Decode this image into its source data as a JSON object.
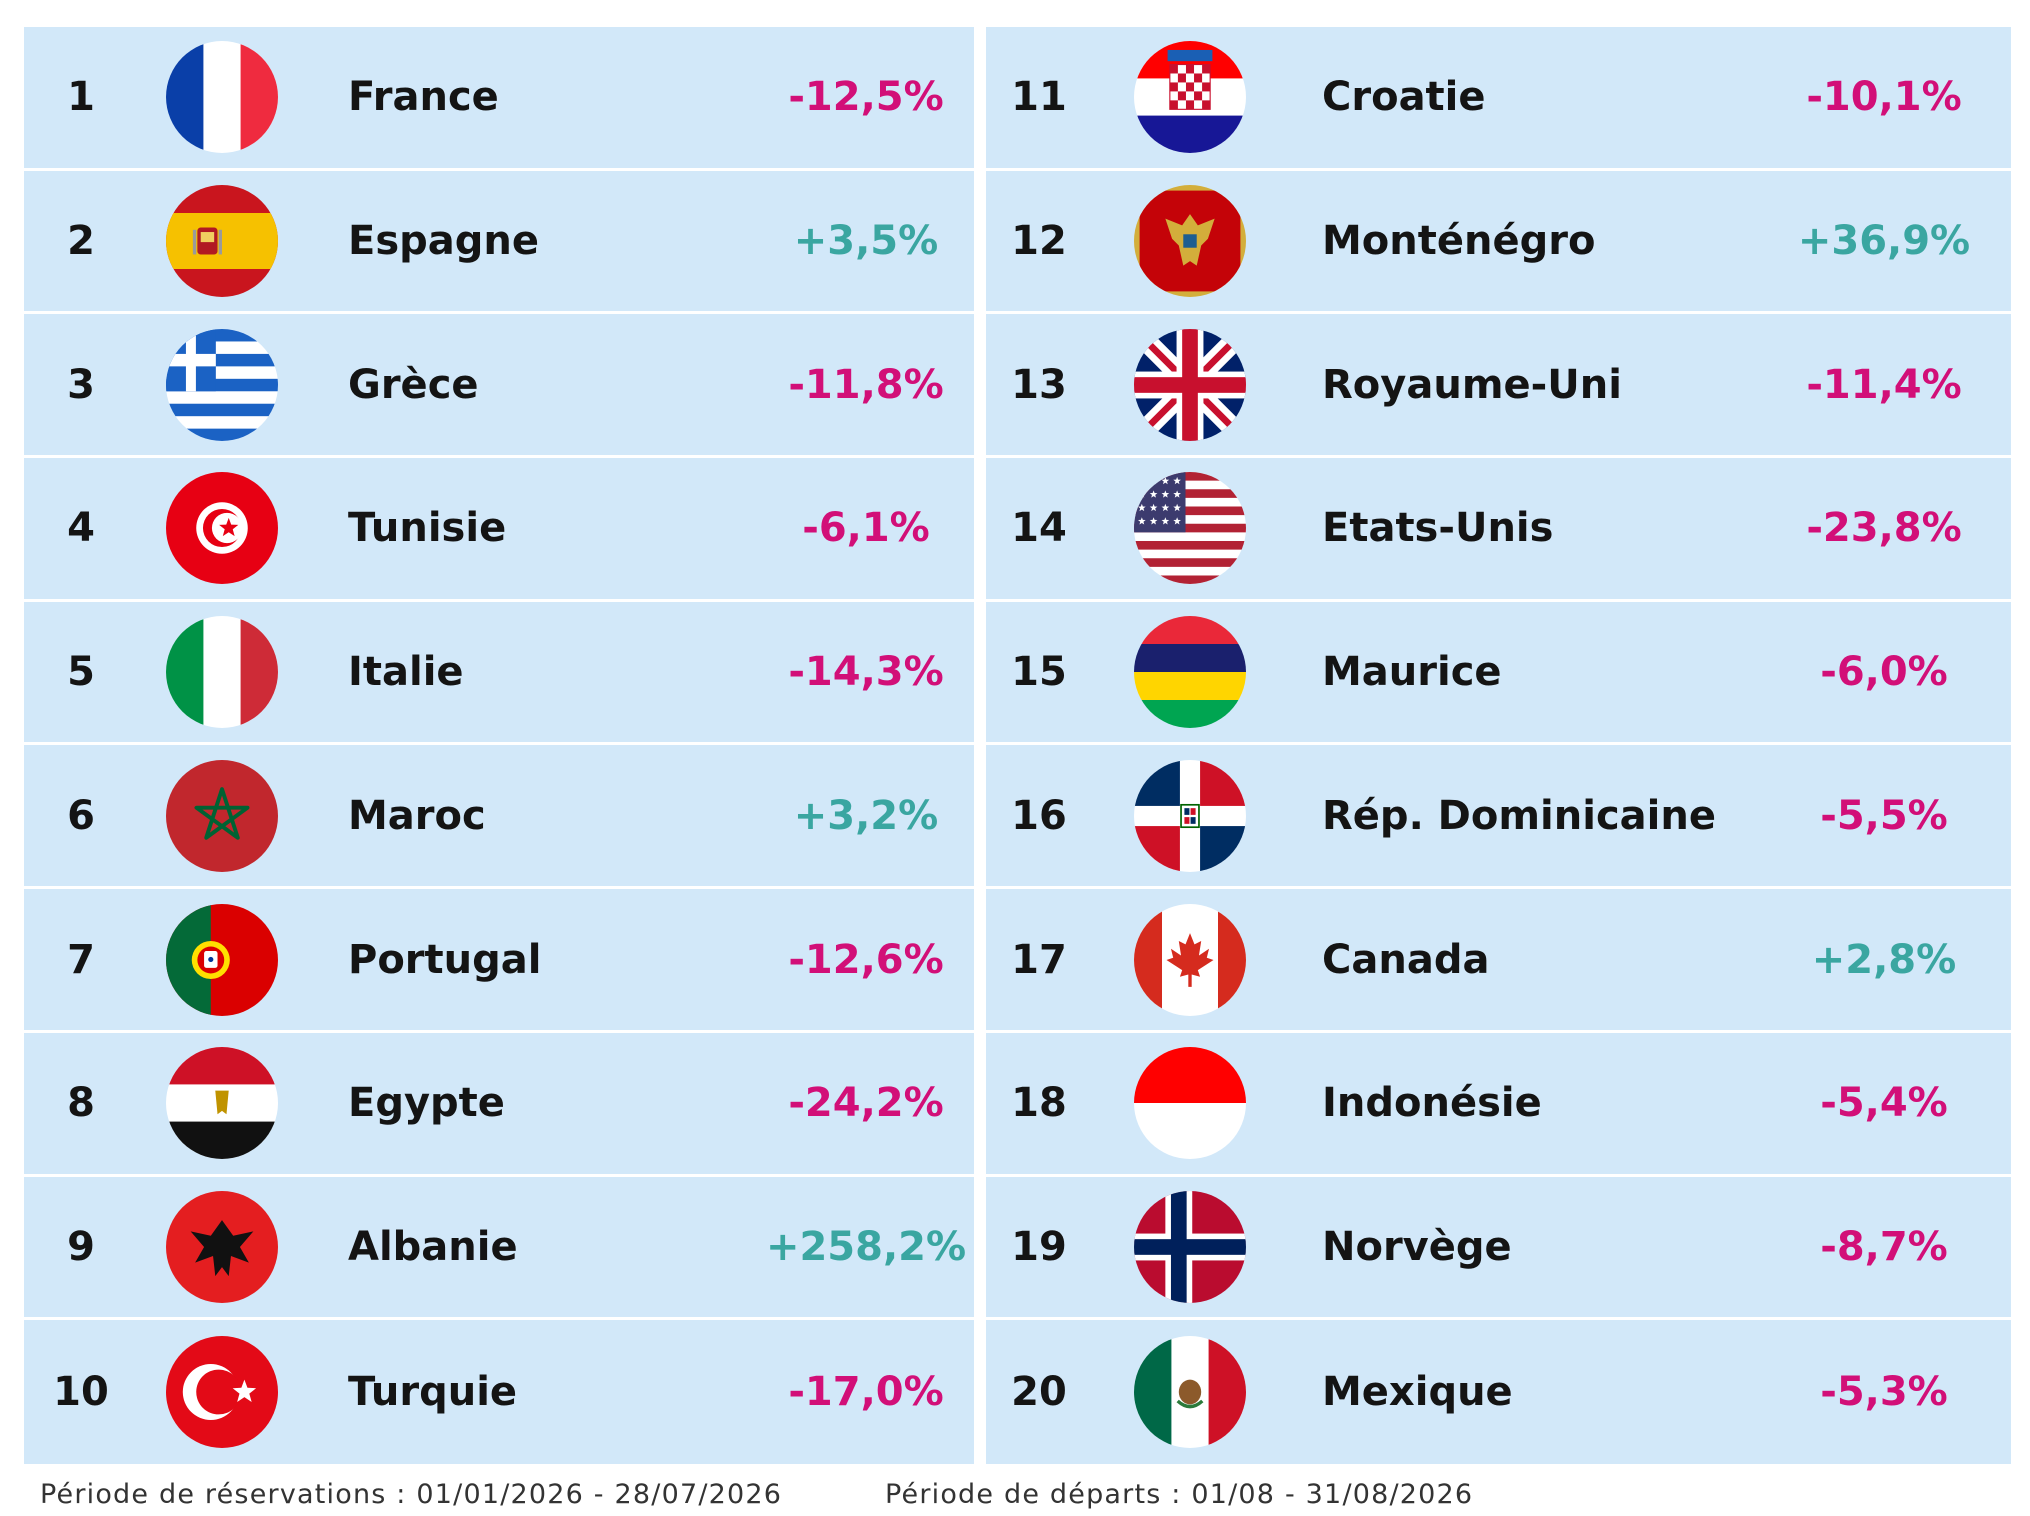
{
  "rows": [
    {
      "rank": "1",
      "country": "France",
      "change": "-12,5%",
      "trend": "down",
      "flag": "france-flag-icon"
    },
    {
      "rank": "2",
      "country": "Espagne",
      "change": "+3,5%",
      "trend": "up",
      "flag": "spain-flag-icon"
    },
    {
      "rank": "3",
      "country": "Grèce",
      "change": "-11,8%",
      "trend": "down",
      "flag": "greece-flag-icon"
    },
    {
      "rank": "4",
      "country": "Tunisie",
      "change": "-6,1%",
      "trend": "down",
      "flag": "tunisia-flag-icon"
    },
    {
      "rank": "5",
      "country": "Italie",
      "change": "-14,3%",
      "trend": "down",
      "flag": "italy-flag-icon"
    },
    {
      "rank": "6",
      "country": "Maroc",
      "change": "+3,2%",
      "trend": "up",
      "flag": "morocco-flag-icon"
    },
    {
      "rank": "7",
      "country": "Portugal",
      "change": "-12,6%",
      "trend": "down",
      "flag": "portugal-flag-icon"
    },
    {
      "rank": "8",
      "country": "Egypte",
      "change": "-24,2%",
      "trend": "down",
      "flag": "egypt-flag-icon"
    },
    {
      "rank": "9",
      "country": "Albanie",
      "change": "+258,2%",
      "trend": "up",
      "flag": "albania-flag-icon"
    },
    {
      "rank": "10",
      "country": "Turquie",
      "change": "-17,0%",
      "trend": "down",
      "flag": "turkey-flag-icon"
    },
    {
      "rank": "11",
      "country": "Croatie",
      "change": "-10,1%",
      "trend": "down",
      "flag": "croatia-flag-icon"
    },
    {
      "rank": "12",
      "country": "Monténégro",
      "change": "+36,9%",
      "trend": "up",
      "flag": "montenegro-flag-icon"
    },
    {
      "rank": "13",
      "country": "Royaume-Uni",
      "change": "-11,4%",
      "trend": "down",
      "flag": "uk-flag-icon"
    },
    {
      "rank": "14",
      "country": "Etats-Unis",
      "change": "-23,8%",
      "trend": "down",
      "flag": "usa-flag-icon"
    },
    {
      "rank": "15",
      "country": "Maurice",
      "change": "-6,0%",
      "trend": "down",
      "flag": "mauritius-flag-icon"
    },
    {
      "rank": "16",
      "country": "Rép. Dominicaine",
      "change": "-5,5%",
      "trend": "down",
      "flag": "dominican-republic-flag-icon"
    },
    {
      "rank": "17",
      "country": "Canada",
      "change": "+2,8%",
      "trend": "up",
      "flag": "canada-flag-icon"
    },
    {
      "rank": "18",
      "country": "Indonésie",
      "change": "-5,4%",
      "trend": "down",
      "flag": "indonesia-flag-icon"
    },
    {
      "rank": "19",
      "country": "Norvège",
      "change": "-8,7%",
      "trend": "down",
      "flag": "norway-flag-icon"
    },
    {
      "rank": "20",
      "country": "Mexique",
      "change": "-5,3%",
      "trend": "down",
      "flag": "mexico-flag-icon"
    }
  ],
  "footer": {
    "booking_period": "Période de réservations : 01/01/2026 - 28/07/2026",
    "departure_period": "Période de départs : 01/08 - 31/08/2026"
  },
  "colors": {
    "background": "#ffffff",
    "panel": "#d2e8f9",
    "positive": "#3aa6a1",
    "negative": "#d20f78",
    "text": "#141414"
  }
}
